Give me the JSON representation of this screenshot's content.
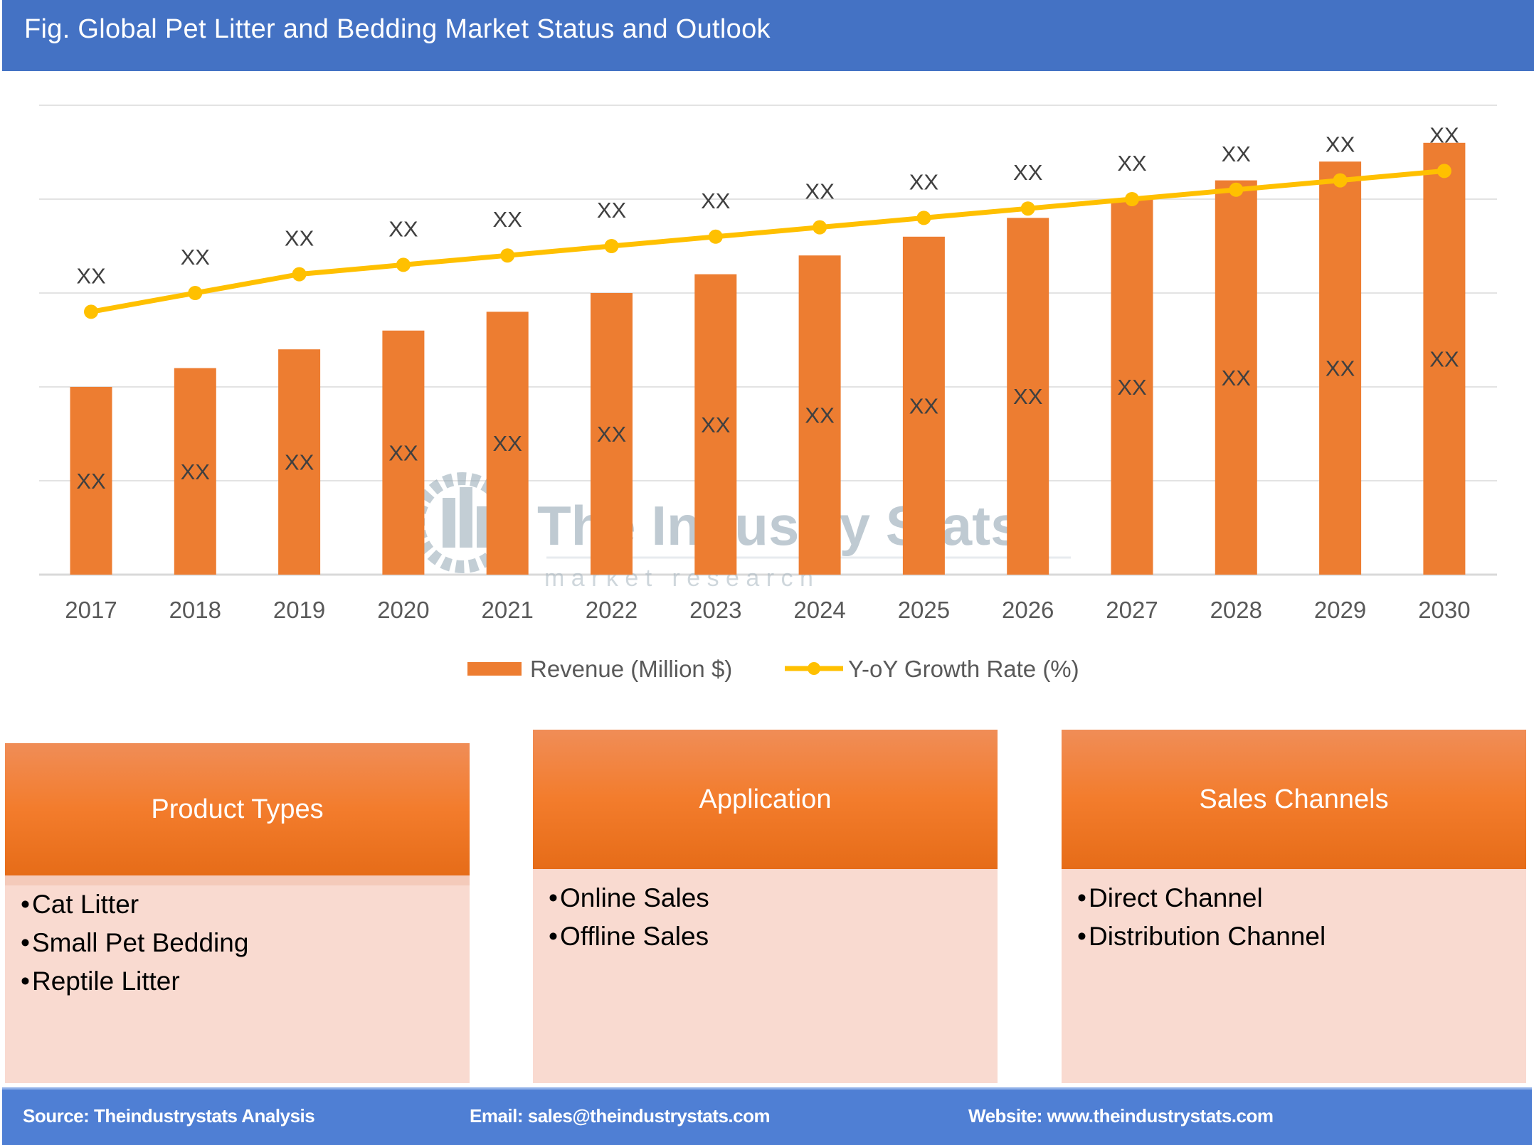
{
  "header": {
    "title": "Fig. Global Pet Litter and Bedding Market Status and Outlook"
  },
  "watermark": {
    "name": "The Industry Stats",
    "tagline": "m a r k e t   r e s e a r c h"
  },
  "chart_data": {
    "type": "bar+line",
    "title": "",
    "xlabel": "",
    "ylabel": "",
    "categories": [
      "2017",
      "2018",
      "2019",
      "2020",
      "2021",
      "2022",
      "2023",
      "2024",
      "2025",
      "2026",
      "2027",
      "2028",
      "2029",
      "2030"
    ],
    "ylim": [
      0,
      5
    ],
    "grid": true,
    "axis_tick_labels_shown": false,
    "legend_position": "bottom",
    "series": [
      {
        "name": "Revenue (Million $)",
        "type": "bar",
        "color": "#ED7D31",
        "values": [
          2.0,
          2.2,
          2.4,
          2.6,
          2.8,
          3.0,
          3.2,
          3.4,
          3.6,
          3.8,
          4.0,
          4.2,
          4.4,
          4.6
        ],
        "data_labels": [
          "XX",
          "XX",
          "XX",
          "XX",
          "XX",
          "XX",
          "XX",
          "XX",
          "XX",
          "XX",
          "XX",
          "XX",
          "XX",
          "XX"
        ]
      },
      {
        "name": "Y-oY Growth Rate (%)",
        "type": "line",
        "color": "#FFC000",
        "values": [
          2.8,
          3.0,
          3.2,
          3.3,
          3.4,
          3.5,
          3.6,
          3.7,
          3.8,
          3.9,
          4.0,
          4.1,
          4.2,
          4.3
        ],
        "data_labels": [
          "XX",
          "XX",
          "XX",
          "XX",
          "XX",
          "XX",
          "XX",
          "XX",
          "XX",
          "XX",
          "XX",
          "XX",
          "XX",
          "XX"
        ]
      }
    ]
  },
  "segments": [
    {
      "title": "Product Types",
      "items": [
        "Cat Litter",
        "Small Pet Bedding",
        "Reptile Litter"
      ]
    },
    {
      "title": "Application",
      "items": [
        "Online Sales",
        "Offline Sales"
      ]
    },
    {
      "title": "Sales Channels",
      "items": [
        "Direct Channel",
        "Distribution Channel"
      ]
    }
  ],
  "footer": {
    "source": "Source: Theindustrystats Analysis",
    "email": "Email: sales@theindustrystats.com",
    "website": "Website: www.theindustrystats.com"
  }
}
